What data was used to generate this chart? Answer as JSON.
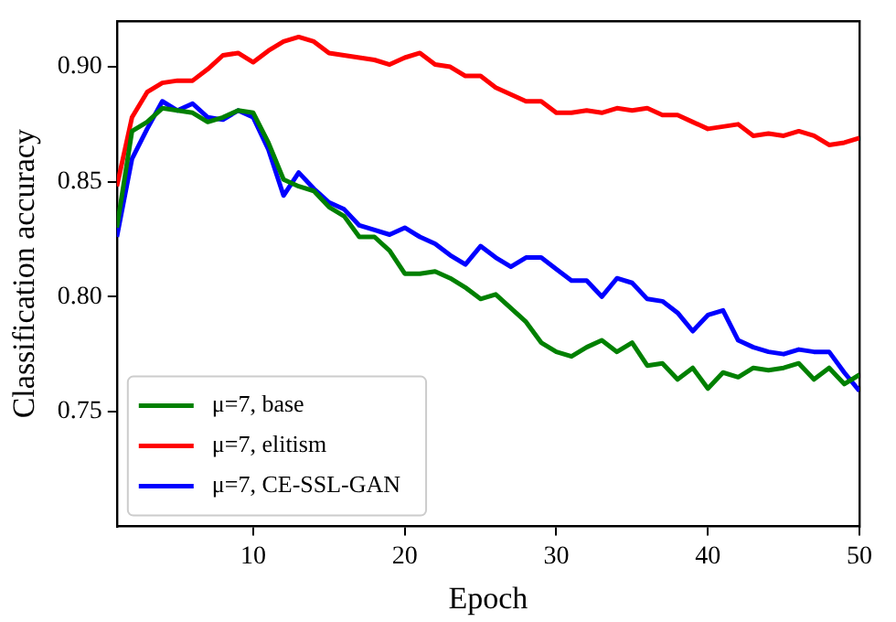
{
  "chart_data": {
    "type": "line",
    "xlabel": "Epoch",
    "ylabel": "Classification accuracy",
    "x": [
      1,
      2,
      3,
      4,
      5,
      6,
      7,
      8,
      9,
      10,
      11,
      12,
      13,
      14,
      15,
      16,
      17,
      18,
      19,
      20,
      21,
      22,
      23,
      24,
      25,
      26,
      27,
      28,
      29,
      30,
      31,
      32,
      33,
      34,
      35,
      36,
      37,
      38,
      39,
      40,
      41,
      42,
      43,
      44,
      45,
      46,
      47,
      48,
      49,
      50
    ],
    "series": [
      {
        "name": "μ=7, base",
        "color": "#008000",
        "values": [
          0.83,
          0.872,
          0.876,
          0.882,
          0.881,
          0.88,
          0.876,
          0.878,
          0.881,
          0.88,
          0.867,
          0.851,
          0.848,
          0.846,
          0.839,
          0.835,
          0.826,
          0.826,
          0.82,
          0.81,
          0.81,
          0.811,
          0.808,
          0.804,
          0.799,
          0.801,
          0.795,
          0.789,
          0.78,
          0.776,
          0.774,
          0.778,
          0.781,
          0.776,
          0.78,
          0.77,
          0.771,
          0.764,
          0.769,
          0.76,
          0.767,
          0.765,
          0.769,
          0.768,
          0.769,
          0.771,
          0.764,
          0.769,
          0.762,
          0.766
        ]
      },
      {
        "name": "μ=7, elitism",
        "color": "#ff0000",
        "values": [
          0.848,
          0.878,
          0.889,
          0.893,
          0.894,
          0.894,
          0.899,
          0.905,
          0.906,
          0.902,
          0.907,
          0.911,
          0.913,
          0.911,
          0.906,
          0.905,
          0.904,
          0.903,
          0.901,
          0.904,
          0.906,
          0.901,
          0.9,
          0.896,
          0.896,
          0.891,
          0.888,
          0.885,
          0.885,
          0.88,
          0.88,
          0.881,
          0.88,
          0.882,
          0.881,
          0.882,
          0.879,
          0.879,
          0.876,
          0.873,
          0.874,
          0.875,
          0.87,
          0.871,
          0.87,
          0.872,
          0.87,
          0.866,
          0.867,
          0.869
        ]
      },
      {
        "name": "μ=7, CE-SSL-GAN",
        "color": "#0000ff",
        "values": [
          0.826,
          0.86,
          0.873,
          0.885,
          0.881,
          0.884,
          0.878,
          0.877,
          0.881,
          0.878,
          0.864,
          0.844,
          0.854,
          0.847,
          0.841,
          0.838,
          0.831,
          0.829,
          0.827,
          0.83,
          0.826,
          0.823,
          0.818,
          0.814,
          0.822,
          0.817,
          0.813,
          0.817,
          0.817,
          0.812,
          0.807,
          0.807,
          0.8,
          0.808,
          0.806,
          0.799,
          0.798,
          0.793,
          0.785,
          0.792,
          0.794,
          0.781,
          0.778,
          0.776,
          0.775,
          0.777,
          0.776,
          0.776,
          0.767,
          0.759
        ]
      }
    ],
    "xlim": [
      1,
      50
    ],
    "xticks": [
      10,
      20,
      30,
      40,
      50
    ],
    "ylim": [
      0.7,
      0.92
    ],
    "yticks": [
      {
        "value": 0.75,
        "label": "0.75"
      },
      {
        "value": 0.8,
        "label": "0.80"
      },
      {
        "value": 0.85,
        "label": "0.85"
      },
      {
        "value": 0.9,
        "label": "0.90"
      }
    ],
    "grid": false,
    "legend": "bottom left",
    "marker": "none",
    "line_style": "solid"
  }
}
